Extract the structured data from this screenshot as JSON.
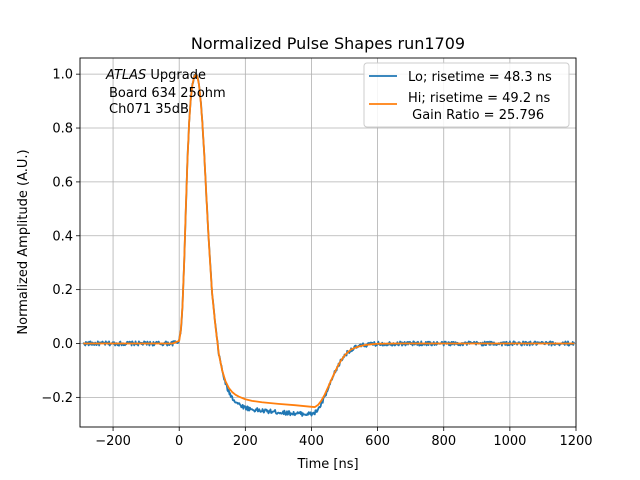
{
  "chart_data": {
    "type": "line",
    "title": "Normalized Pulse Shapes run1709",
    "xlabel": "Time [ns]",
    "ylabel": "Normalized Amplitude (A.U.)",
    "xlim": [
      -300,
      1200
    ],
    "ylim": [
      -0.31,
      1.06
    ],
    "xticks": [
      -200,
      0,
      200,
      400,
      600,
      800,
      1000,
      1200
    ],
    "xtick_labels": [
      "−200",
      "0",
      "200",
      "400",
      "600",
      "800",
      "1000",
      "1200"
    ],
    "yticks": [
      -0.2,
      0.0,
      0.2,
      0.4,
      0.6,
      0.8,
      1.0
    ],
    "ytick_labels": [
      "−0.2",
      "0.0",
      "0.2",
      "0.4",
      "0.6",
      "0.8",
      "1.0"
    ],
    "grid": true,
    "legend_position": "upper right",
    "annotation": {
      "line1_italic": "ATLAS",
      "line1_rest": " Upgrade",
      "line2": "Board 634 25ohm",
      "line3": "Ch071 35dB"
    },
    "series": [
      {
        "name": "Lo; risetime = 48.3 ns",
        "color": "#1f77b4",
        "noisy": true,
        "x": [
          -290,
          -200,
          -100,
          -20,
          0,
          5,
          10,
          15,
          20,
          25,
          30,
          35,
          40,
          45,
          50,
          55,
          60,
          65,
          70,
          75,
          80,
          85,
          90,
          95,
          100,
          110,
          120,
          130,
          140,
          150,
          160,
          170,
          180,
          190,
          200,
          220,
          250,
          300,
          350,
          400,
          410,
          420,
          430,
          440,
          450,
          460,
          470,
          480,
          490,
          500,
          510,
          520,
          540,
          560,
          580,
          600,
          650,
          700,
          800,
          900,
          1000,
          1100,
          1195
        ],
        "y": [
          0.0,
          0.0,
          0.0,
          0.0,
          0.01,
          0.05,
          0.14,
          0.3,
          0.5,
          0.68,
          0.82,
          0.91,
          0.96,
          0.99,
          1.0,
          0.99,
          0.96,
          0.9,
          0.82,
          0.72,
          0.6,
          0.48,
          0.37,
          0.27,
          0.18,
          0.06,
          -0.04,
          -0.1,
          -0.15,
          -0.18,
          -0.2,
          -0.215,
          -0.225,
          -0.232,
          -0.238,
          -0.245,
          -0.25,
          -0.255,
          -0.26,
          -0.262,
          -0.258,
          -0.245,
          -0.225,
          -0.2,
          -0.17,
          -0.14,
          -0.11,
          -0.085,
          -0.062,
          -0.045,
          -0.032,
          -0.022,
          -0.012,
          -0.006,
          -0.003,
          -0.001,
          0.0,
          0.0,
          0.0,
          0.0,
          0.0,
          0.0,
          0.0
        ]
      },
      {
        "name": "Hi; risetime = 49.2 ns\n Gain Ratio = 25.796",
        "color": "#ff7f0e",
        "noisy": false,
        "x": [
          -290,
          -200,
          -100,
          -20,
          0,
          5,
          10,
          15,
          20,
          25,
          30,
          35,
          40,
          45,
          50,
          55,
          60,
          65,
          70,
          75,
          80,
          85,
          90,
          95,
          100,
          110,
          120,
          130,
          140,
          150,
          160,
          170,
          180,
          190,
          200,
          220,
          250,
          300,
          350,
          400,
          410,
          420,
          430,
          440,
          450,
          460,
          470,
          480,
          490,
          500,
          510,
          520,
          540,
          560,
          580,
          600,
          650,
          700,
          800,
          900,
          1000,
          1100,
          1195
        ],
        "y": [
          0.0,
          0.0,
          0.0,
          0.0,
          0.01,
          0.05,
          0.14,
          0.3,
          0.5,
          0.68,
          0.82,
          0.91,
          0.96,
          0.99,
          1.0,
          0.99,
          0.96,
          0.9,
          0.82,
          0.72,
          0.6,
          0.48,
          0.37,
          0.27,
          0.18,
          0.06,
          -0.04,
          -0.1,
          -0.14,
          -0.165,
          -0.18,
          -0.19,
          -0.197,
          -0.202,
          -0.207,
          -0.213,
          -0.218,
          -0.224,
          -0.229,
          -0.235,
          -0.236,
          -0.228,
          -0.212,
          -0.19,
          -0.163,
          -0.135,
          -0.108,
          -0.083,
          -0.062,
          -0.045,
          -0.032,
          -0.022,
          -0.012,
          -0.006,
          -0.003,
          -0.001,
          0.0,
          0.0,
          0.0,
          0.0,
          0.0,
          0.0,
          0.0
        ]
      }
    ]
  }
}
